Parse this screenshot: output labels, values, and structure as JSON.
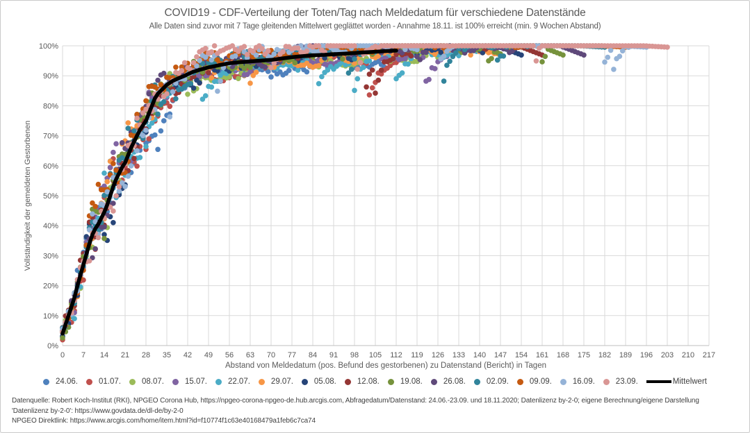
{
  "chart": {
    "title": "COVID19 - CDF-Verteilung der Toten/Tag nach Meldedatum für verschiedene Datenstände",
    "subtitle": "Alle Daten sind zuvor mit 7 Tage gleitenden Mittelwert geglättet worden - Annahme 18.11. ist 100% erreicht (min. 9 Wochen Abstand)",
    "x_axis_label": "Abstand von Meldedatum (pos. Befund des gestorbenen) zu Datenstand (Bericht) in Tagen",
    "y_axis_label": "Vollständigkeit der gemeldeten  Gestorbenen"
  },
  "chart_data": {
    "type": "scatter",
    "title": "COVID19 - CDF-Verteilung der Toten/Tag nach Meldedatum für verschiedene Datenstände",
    "xlabel": "Abstand von Meldedatum (pos. Befund des gestorbenen) zu Datenstand (Bericht) in Tagen",
    "ylabel": "Vollständigkeit der gemeldeten Gestorbenen",
    "xlim": [
      0,
      217
    ],
    "ylim": [
      0,
      100
    ],
    "grid": true,
    "legend_position": "bottom",
    "x_ticks": [
      0,
      7,
      14,
      21,
      28,
      35,
      42,
      49,
      56,
      63,
      70,
      77,
      84,
      91,
      98,
      105,
      112,
      119,
      126,
      133,
      140,
      147,
      154,
      161,
      168,
      175,
      182,
      189,
      196,
      203,
      210,
      217
    ],
    "y_ticks_pct": [
      0,
      10,
      20,
      30,
      40,
      50,
      60,
      70,
      80,
      90,
      100
    ],
    "series": [
      {
        "name": "24.06.",
        "type": "scatter",
        "color": "#4F81BD",
        "max_day": 112
      },
      {
        "name": "01.07.",
        "type": "scatter",
        "color": "#C0504D",
        "max_day": 119
      },
      {
        "name": "08.07.",
        "type": "scatter",
        "color": "#9BBB59",
        "max_day": 126
      },
      {
        "name": "15.07.",
        "type": "scatter",
        "color": "#8064A2",
        "max_day": 133
      },
      {
        "name": "22.07.",
        "type": "scatter",
        "color": "#4BACC6",
        "max_day": 140
      },
      {
        "name": "29.07.",
        "type": "scatter",
        "color": "#F79646",
        "max_day": 147
      },
      {
        "name": "05.08.",
        "type": "scatter",
        "color": "#264478",
        "max_day": 154
      },
      {
        "name": "12.08.",
        "type": "scatter",
        "color": "#943634",
        "max_day": 161
      },
      {
        "name": "19.08.",
        "type": "scatter",
        "color": "#76923C",
        "max_day": 168
      },
      {
        "name": "26.08.",
        "type": "scatter",
        "color": "#5F497A",
        "max_day": 175
      },
      {
        "name": "02.09.",
        "type": "scatter",
        "color": "#31849B",
        "max_day": 182
      },
      {
        "name": "09.09.",
        "type": "scatter",
        "color": "#C55A11",
        "max_day": 189
      },
      {
        "name": "16.09.",
        "type": "scatter",
        "color": "#95B3D7",
        "max_day": 196
      },
      {
        "name": "23.09.",
        "type": "scatter",
        "color": "#D99694",
        "max_day": 203
      },
      {
        "name": "Mittelwert",
        "type": "line",
        "color": "#000000"
      }
    ],
    "mean_curve": {
      "x": [
        0,
        1,
        2,
        3,
        4,
        5,
        6,
        7,
        8,
        9,
        10,
        11,
        12,
        13,
        14,
        15,
        16,
        17,
        18,
        19,
        20,
        21,
        22,
        23,
        24,
        25,
        26,
        27,
        28,
        29,
        30,
        31,
        32,
        33,
        34,
        35,
        37,
        39,
        41,
        42,
        44,
        46,
        49,
        53,
        56,
        59,
        63,
        67,
        70,
        74,
        77,
        80,
        84,
        88,
        91,
        95,
        98,
        101,
        105,
        108,
        112
      ],
      "y": [
        4,
        7,
        10,
        13,
        16,
        20,
        23.5,
        27,
        30.5,
        34,
        37,
        39,
        40.5,
        42.5,
        44.5,
        47,
        50,
        53,
        55.5,
        57.5,
        59.5,
        61,
        63.5,
        66,
        68,
        70,
        72,
        73.5,
        75,
        77.5,
        80,
        82.5,
        84,
        85,
        86,
        87,
        88.3,
        89.2,
        90,
        90.5,
        91.4,
        92,
        92.8,
        93.6,
        94.2,
        94.5,
        94.8,
        95.1,
        95.3,
        95.8,
        96.2,
        96.5,
        96.8,
        97,
        97.2,
        97.4,
        97.6,
        97.8,
        98,
        98.2,
        98.4
      ]
    }
  },
  "footer": {
    "line1": "Datenquelle: Robert Koch-Institut (RKI), NPGEO Corona Hub, https://npgeo-corona-npgeo-de.hub.arcgis.com, Abfragedatum/Datenstand: 24.06.-23.09. und 18.11.2020; Datenlizenz by-2-0; eigene Berechnung/eigene Darstellung",
    "line2": "'Datenlizenz by-2-0': https://www.govdata.de/dl-de/by-2-0",
    "line3": "NPGEO Direktlink: https://www.arcgis.com/home/item.html?id=f10774f1c63e40168479a1feb6c7ca74"
  },
  "colors": {
    "background": "#FFFFFF",
    "grid": "#D9D9D9",
    "axis_line": "#BFBFBF",
    "axis_text": "#595959",
    "title_text": "#595959",
    "legend_text": "#404040",
    "footer_text": "#404040",
    "mean_line": "#000000"
  }
}
